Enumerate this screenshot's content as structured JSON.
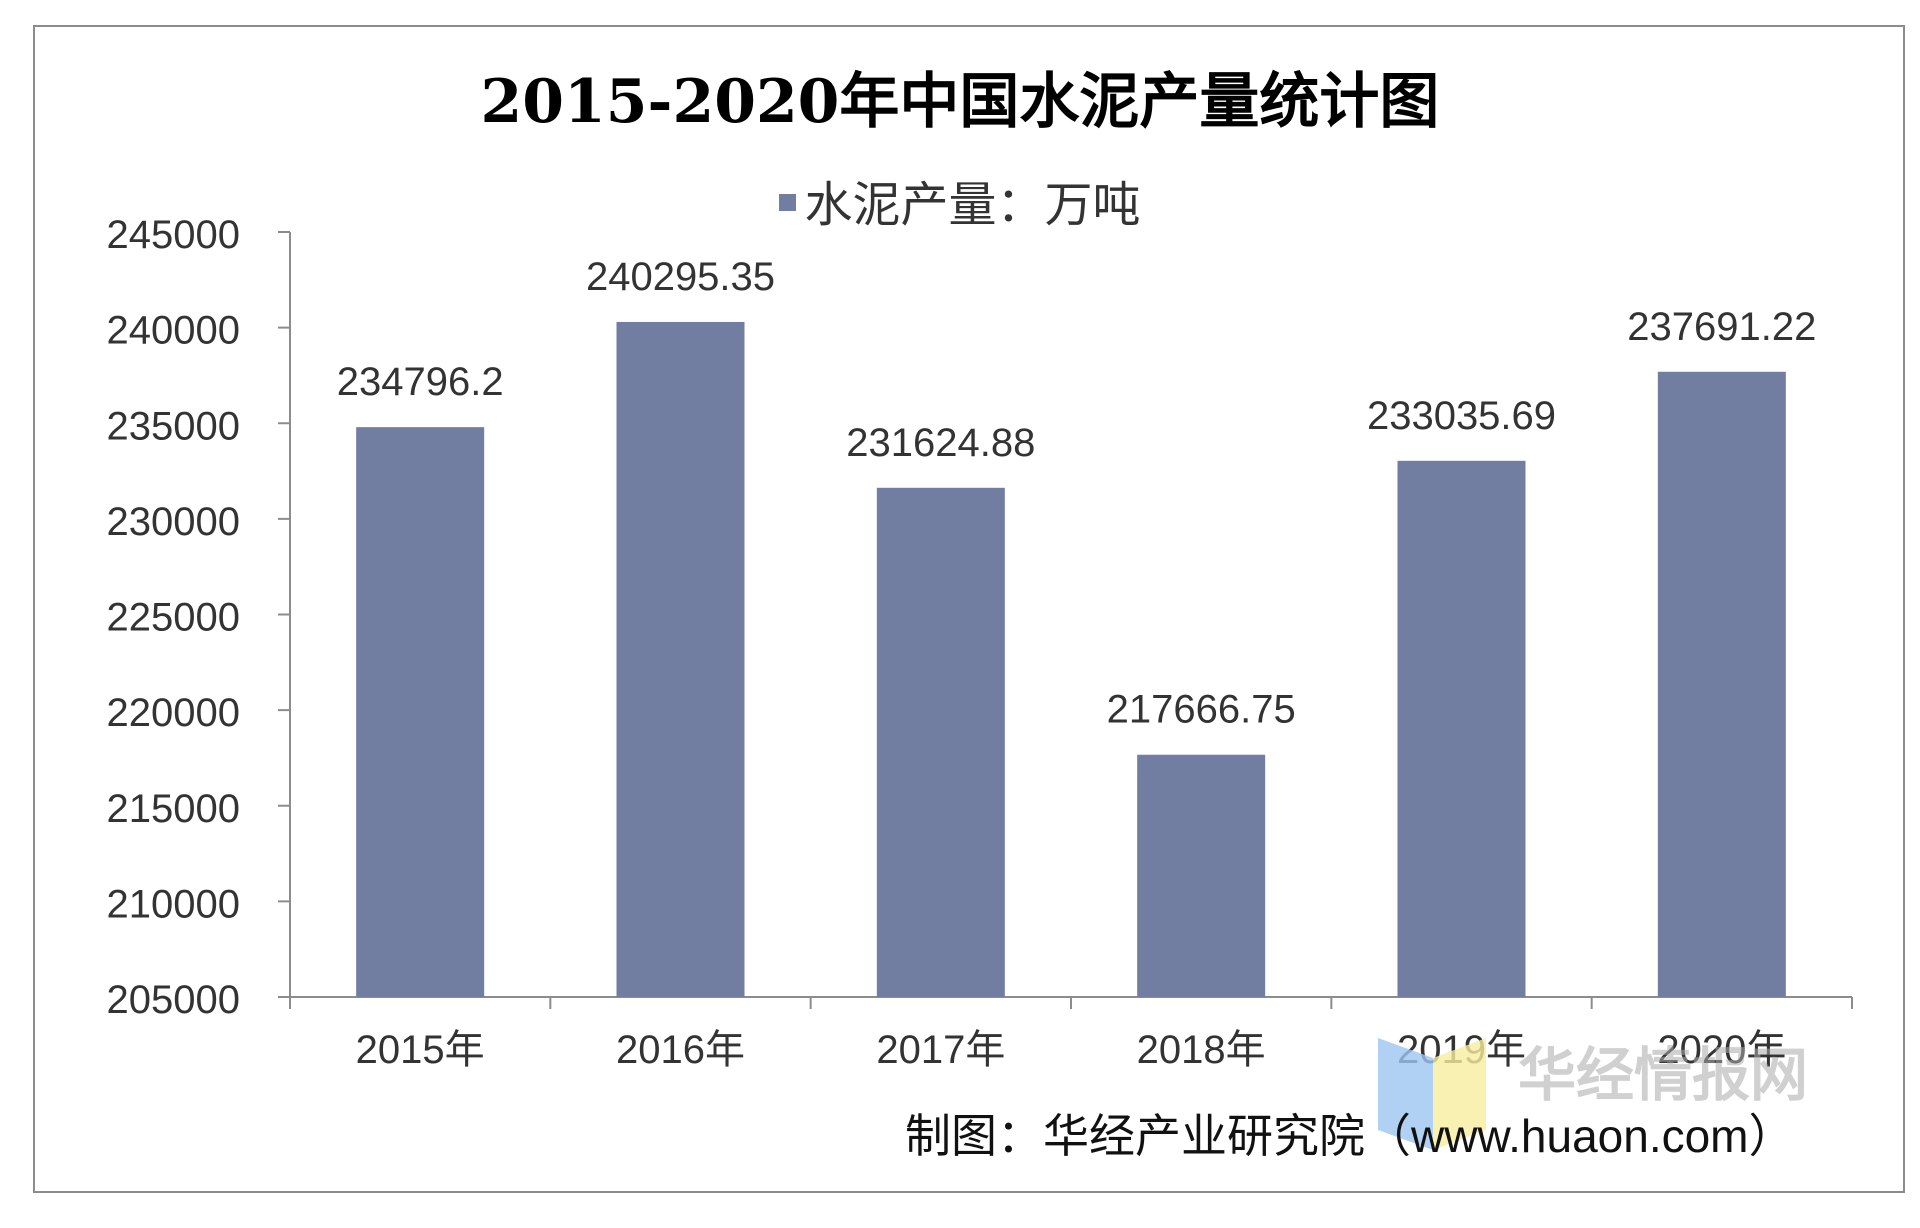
{
  "chart_data": {
    "type": "bar",
    "title": "2015-2020年中国水泥产量统计图",
    "categories": [
      "2015年",
      "2016年",
      "2017年",
      "2018年",
      "2019年",
      "2020年"
    ],
    "series": [
      {
        "name": "水泥产量：万吨",
        "values": [
          234796.2,
          240295.35,
          231624.88,
          217666.75,
          233035.69,
          237691.22
        ],
        "labels": [
          "234796.2",
          "240295.35",
          "231624.88",
          "217666.75",
          "233035.69",
          "237691.22"
        ],
        "color": "#727da2"
      }
    ],
    "ylim": [
      205000,
      245000
    ],
    "yticks": [
      205000,
      210000,
      215000,
      220000,
      225000,
      230000,
      235000,
      240000,
      245000
    ],
    "ytick_labels": [
      "205000",
      "210000",
      "215000",
      "220000",
      "225000",
      "230000",
      "235000",
      "240000",
      "245000"
    ],
    "xlabel": "",
    "ylabel": "",
    "grid": false,
    "legend_position": "top-center"
  },
  "credit": "制图：华经产业研究院（www.huaon.com）",
  "watermark": {
    "text": "华经情报网",
    "logo_colors": [
      "#9cc5f0",
      "#f7ee9e"
    ]
  }
}
